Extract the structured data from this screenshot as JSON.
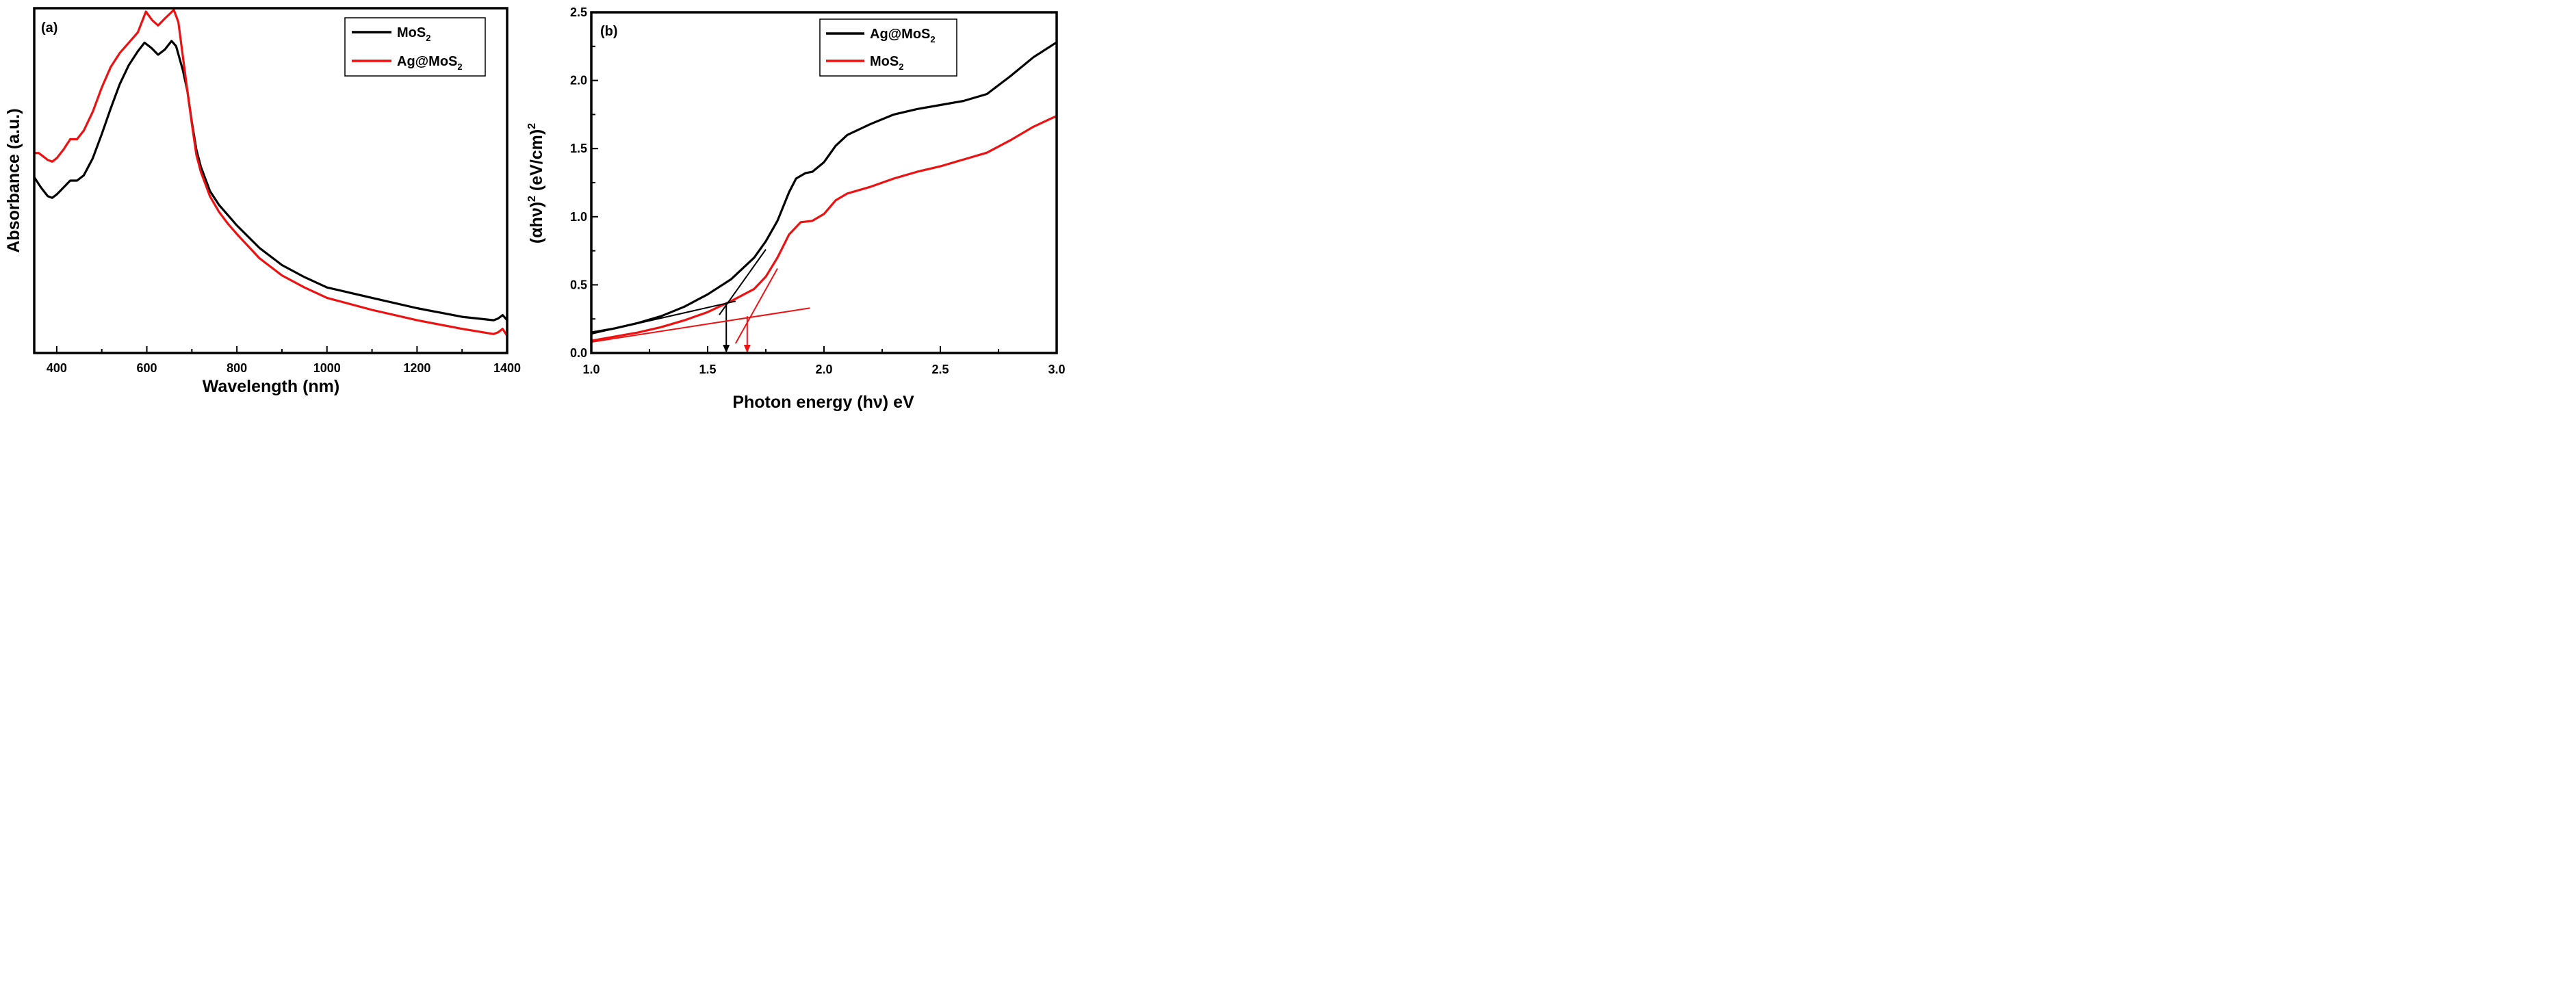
{
  "chart_data": [
    {
      "type": "line",
      "panel_label": "(a)",
      "xlabel": "Wavelength (nm)",
      "ylabel": "Absorbance (a.u.)",
      "xlim": [
        350,
        1400
      ],
      "ylim": [
        0.0,
        1.0
      ],
      "y_ticks_labeled": false,
      "x_ticks": [
        400,
        600,
        800,
        1000,
        1200,
        1400
      ],
      "legend": {
        "placement": "top-right",
        "entries": [
          {
            "base": "MoS",
            "sub": "2",
            "color": "#000000"
          },
          {
            "base": "Ag@MoS",
            "sub": "2",
            "color": "#ee1111"
          }
        ]
      },
      "series": [
        {
          "name": "MoS2",
          "color": "#000000",
          "x": [
            350,
            365,
            380,
            390,
            400,
            415,
            430,
            445,
            460,
            480,
            500,
            520,
            540,
            560,
            580,
            595,
            610,
            625,
            640,
            655,
            665,
            680,
            690,
            700,
            710,
            720,
            740,
            760,
            780,
            800,
            850,
            900,
            950,
            1000,
            1100,
            1200,
            1300,
            1370,
            1380,
            1390,
            1400
          ],
          "y": [
            0.51,
            0.48,
            0.455,
            0.45,
            0.46,
            0.48,
            0.5,
            0.5,
            0.515,
            0.565,
            0.635,
            0.71,
            0.78,
            0.835,
            0.875,
            0.9,
            0.885,
            0.865,
            0.88,
            0.905,
            0.89,
            0.82,
            0.76,
            0.67,
            0.59,
            0.54,
            0.47,
            0.43,
            0.4,
            0.37,
            0.305,
            0.255,
            0.22,
            0.19,
            0.16,
            0.13,
            0.105,
            0.095,
            0.1,
            0.11,
            0.095
          ]
        },
        {
          "name": "Ag@MoS2",
          "color": "#ee1111",
          "x": [
            350,
            360,
            370,
            380,
            390,
            400,
            415,
            430,
            445,
            460,
            480,
            500,
            520,
            540,
            560,
            580,
            598,
            612,
            625,
            640,
            660,
            670,
            680,
            690,
            700,
            710,
            720,
            740,
            760,
            780,
            800,
            850,
            900,
            950,
            1000,
            1100,
            1200,
            1300,
            1370,
            1380,
            1390,
            1400
          ],
          "y": [
            0.58,
            0.58,
            0.57,
            0.56,
            0.555,
            0.565,
            0.59,
            0.62,
            0.62,
            0.645,
            0.7,
            0.77,
            0.83,
            0.87,
            0.9,
            0.93,
            0.99,
            0.965,
            0.95,
            0.97,
            0.995,
            0.96,
            0.86,
            0.76,
            0.665,
            0.575,
            0.525,
            0.455,
            0.41,
            0.375,
            0.345,
            0.275,
            0.225,
            0.19,
            0.16,
            0.125,
            0.095,
            0.07,
            0.055,
            0.06,
            0.07,
            0.05
          ]
        }
      ]
    },
    {
      "type": "line",
      "panel_label": "(b)",
      "xlabel": "Photon energy (hν) eV",
      "ylabel": "(αhν)² (eV/cm)²",
      "ylabel_parts": {
        "a": "(αhν)",
        "sup1": "2",
        "b": " (eV/cm)",
        "sup2": "2"
      },
      "xlim": [
        1.0,
        3.0
      ],
      "ylim": [
        0.0,
        2.5
      ],
      "x_ticks": [
        "1.0",
        "1.5",
        "2.0",
        "2.5",
        "3.0"
      ],
      "y_ticks": [
        "0.0",
        "0.5",
        "1.0",
        "1.5",
        "2.0",
        "2.5"
      ],
      "legend": {
        "placement": "top-right",
        "entries": [
          {
            "base": "Ag@MoS",
            "sub": "2",
            "color": "#000000"
          },
          {
            "base": "MoS",
            "sub": "2",
            "color": "#ee1111"
          }
        ]
      },
      "series": [
        {
          "name": "Ag@MoS2",
          "color": "#000000",
          "x": [
            1.0,
            1.1,
            1.2,
            1.3,
            1.4,
            1.5,
            1.6,
            1.7,
            1.75,
            1.8,
            1.85,
            1.88,
            1.92,
            1.95,
            2.0,
            2.05,
            2.1,
            2.2,
            2.3,
            2.4,
            2.5,
            2.6,
            2.7,
            2.8,
            2.9,
            3.0
          ],
          "y": [
            0.15,
            0.18,
            0.22,
            0.27,
            0.34,
            0.43,
            0.54,
            0.7,
            0.82,
            0.97,
            1.18,
            1.28,
            1.32,
            1.33,
            1.4,
            1.52,
            1.6,
            1.68,
            1.75,
            1.79,
            1.82,
            1.85,
            1.9,
            2.03,
            2.17,
            2.28
          ]
        },
        {
          "name": "MoS2",
          "color": "#ee1111",
          "x": [
            1.0,
            1.1,
            1.2,
            1.3,
            1.4,
            1.5,
            1.6,
            1.7,
            1.75,
            1.8,
            1.85,
            1.9,
            1.95,
            2.0,
            2.05,
            2.1,
            2.2,
            2.3,
            2.4,
            2.5,
            2.6,
            2.7,
            2.8,
            2.9,
            3.0
          ],
          "y": [
            0.09,
            0.12,
            0.15,
            0.19,
            0.24,
            0.3,
            0.38,
            0.47,
            0.56,
            0.7,
            0.87,
            0.96,
            0.97,
            1.02,
            1.12,
            1.17,
            1.22,
            1.28,
            1.33,
            1.37,
            1.42,
            1.47,
            1.56,
            1.66,
            1.74
          ]
        }
      ],
      "annotations": [
        {
          "kind": "tangent",
          "color": "#000000",
          "x": [
            1.55,
            1.75
          ],
          "y": [
            0.28,
            0.76
          ]
        },
        {
          "kind": "baseline",
          "color": "#000000",
          "x": [
            1.0,
            1.62
          ],
          "y": [
            0.14,
            0.38
          ]
        },
        {
          "kind": "arrow",
          "color": "#000000",
          "x": 1.58,
          "y_from": 0.37,
          "y_to": 0.0
        },
        {
          "kind": "tangent",
          "color": "#ee1111",
          "x": [
            1.62,
            1.8
          ],
          "y": [
            0.07,
            0.62
          ]
        },
        {
          "kind": "baseline",
          "color": "#ee1111",
          "x": [
            1.0,
            1.94
          ],
          "y": [
            0.08,
            0.33
          ]
        },
        {
          "kind": "arrow",
          "color": "#ee1111",
          "x": 1.67,
          "y_from": 0.27,
          "y_to": 0.0
        }
      ]
    }
  ]
}
